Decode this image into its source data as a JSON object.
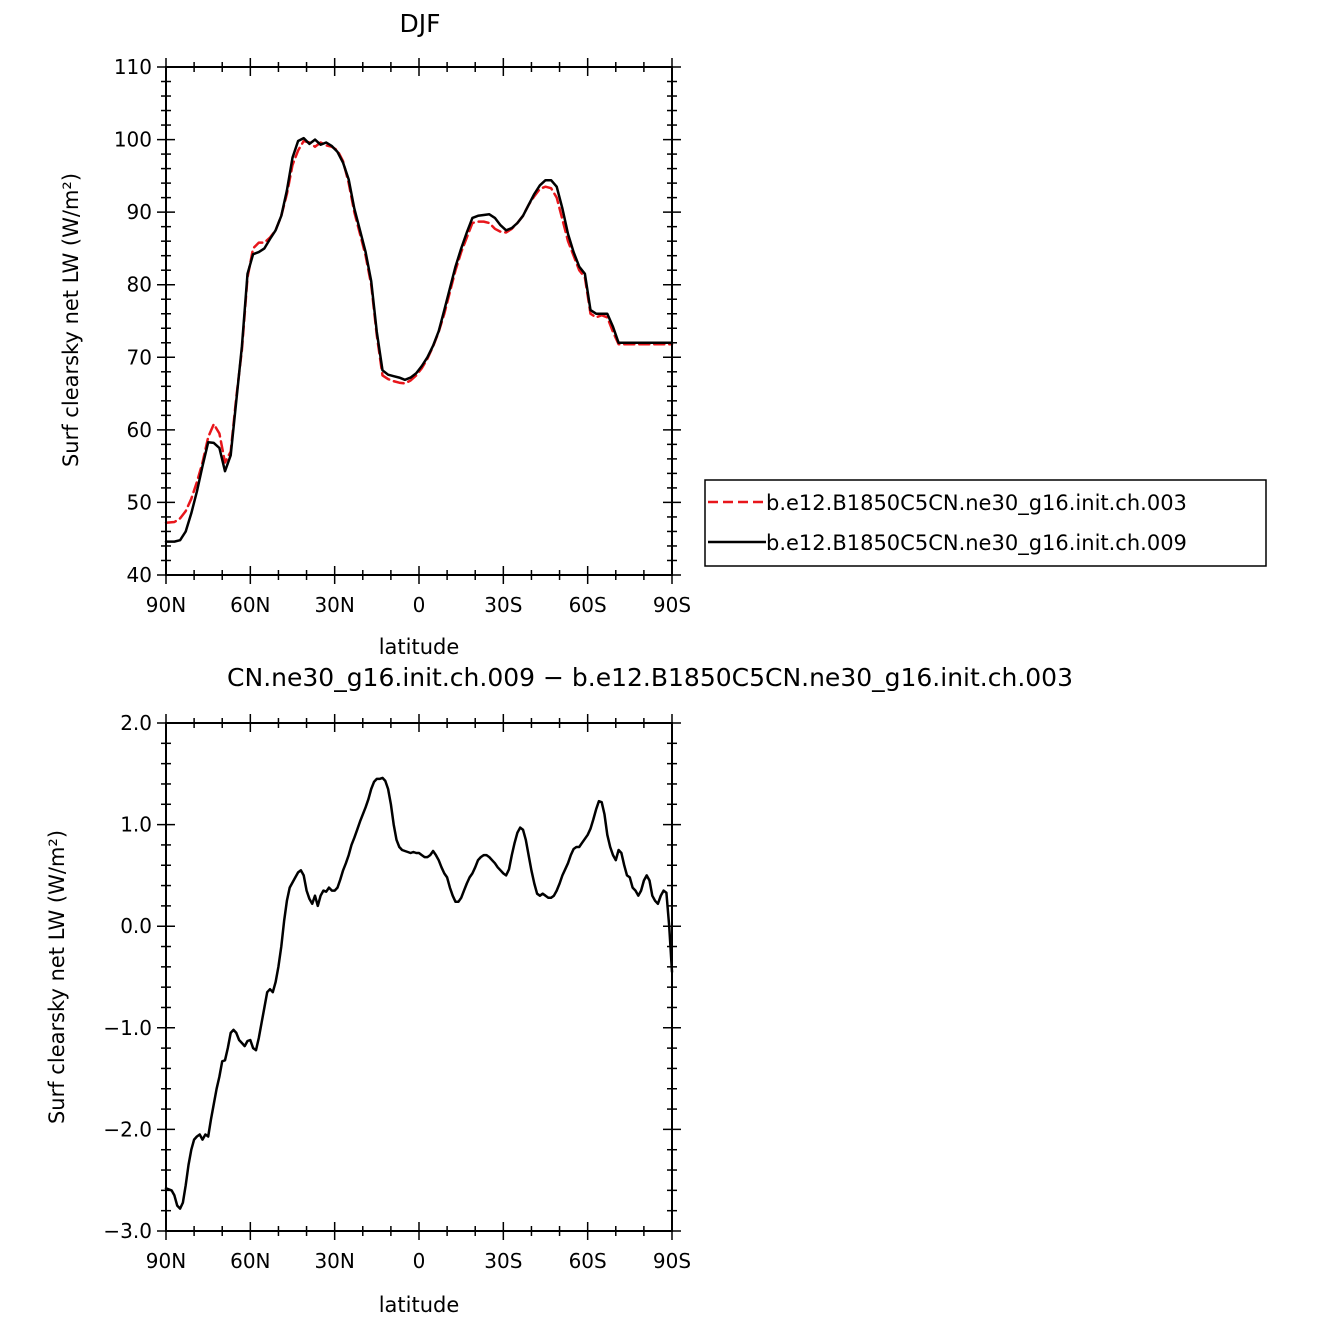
{
  "chart_data": [
    {
      "type": "line",
      "title": "DJF",
      "xlabel": "latitude",
      "ylabel": "Surf clearsky net LW (W/m²)",
      "xlim": [
        90,
        -90
      ],
      "ylim": [
        40,
        110
      ],
      "xticks": [
        {
          "value": 90,
          "label": "90N"
        },
        {
          "value": 60,
          "label": "60N"
        },
        {
          "value": 30,
          "label": "30N"
        },
        {
          "value": 0,
          "label": "0"
        },
        {
          "value": -30,
          "label": "30S"
        },
        {
          "value": -60,
          "label": "60S"
        },
        {
          "value": -90,
          "label": "90S"
        }
      ],
      "yticks": [
        {
          "value": 40,
          "label": "40"
        },
        {
          "value": 50,
          "label": "50"
        },
        {
          "value": 60,
          "label": "60"
        },
        {
          "value": 70,
          "label": "70"
        },
        {
          "value": 80,
          "label": "80"
        },
        {
          "value": 90,
          "label": "90"
        },
        {
          "value": 100,
          "label": "100"
        },
        {
          "value": 110,
          "label": "110"
        }
      ],
      "legend_position": "right",
      "series": [
        {
          "name": "b.e12.B1850C5CN.ne30_g16.init.ch.003",
          "color": "#e8161b",
          "dash": "dashed",
          "x": [
            90,
            87,
            85,
            83,
            81,
            79,
            77,
            75,
            73,
            71,
            69,
            67,
            65,
            63,
            61,
            59,
            57,
            55,
            53,
            51,
            49,
            47,
            45,
            43,
            41,
            39,
            37,
            35,
            33,
            31,
            29,
            27,
            25,
            23,
            21,
            19,
            17,
            15,
            13,
            11,
            9,
            7,
            5,
            3,
            1,
            -1,
            -3,
            -5,
            -7,
            -9,
            -11,
            -13,
            -15,
            -17,
            -19,
            -21,
            -23,
            -25,
            -27,
            -29,
            -31,
            -33,
            -35,
            -37,
            -39,
            -41,
            -43,
            -45,
            -47,
            -49,
            -51,
            -53,
            -55,
            -57,
            -59,
            -61,
            -63,
            -65,
            -67,
            -69,
            -71,
            -73,
            -75,
            -77,
            -79,
            -81,
            -83,
            -85,
            -87,
            -90
          ],
          "values": [
            47.2,
            47.3,
            47.8,
            48.8,
            50.5,
            52.8,
            55.5,
            59.0,
            60.8,
            59.5,
            55.5,
            57.0,
            64.5,
            71.0,
            81.0,
            85.0,
            85.8,
            85.8,
            86.5,
            87.5,
            89.5,
            92.5,
            96.5,
            98.5,
            99.8,
            99.6,
            99.0,
            99.6,
            99.2,
            99.0,
            98.5,
            97.0,
            94.0,
            90.0,
            87.0,
            84.0,
            80.0,
            73.0,
            67.5,
            67.0,
            66.7,
            66.5,
            66.4,
            66.8,
            67.5,
            68.5,
            69.8,
            71.5,
            73.5,
            76.0,
            79.0,
            82.0,
            84.5,
            86.5,
            88.5,
            88.7,
            88.7,
            88.5,
            87.7,
            87.3,
            87.2,
            87.7,
            88.5,
            89.5,
            91.0,
            92.2,
            93.2,
            93.5,
            93.3,
            92.0,
            89.0,
            86.0,
            84.0,
            82.0,
            81.0,
            76.0,
            75.5,
            75.8,
            75.5,
            73.5,
            71.8,
            71.8,
            71.8,
            71.8,
            71.8,
            71.8,
            71.8,
            71.8,
            71.8,
            71.8
          ]
        },
        {
          "name": "b.e12.B1850C5CN.ne30_g16.init.ch.009",
          "color": "#000000",
          "dash": "solid",
          "x": [
            90,
            87,
            85,
            83,
            81,
            79,
            77,
            75,
            73,
            71,
            69,
            67,
            65,
            63,
            61,
            59,
            57,
            55,
            53,
            51,
            49,
            47,
            45,
            43,
            41,
            39,
            37,
            35,
            33,
            31,
            29,
            27,
            25,
            23,
            21,
            19,
            17,
            15,
            13,
            11,
            9,
            7,
            5,
            3,
            1,
            -1,
            -3,
            -5,
            -7,
            -9,
            -11,
            -13,
            -15,
            -17,
            -19,
            -21,
            -23,
            -25,
            -27,
            -29,
            -31,
            -33,
            -35,
            -37,
            -39,
            -41,
            -43,
            -45,
            -47,
            -49,
            -51,
            -53,
            -55,
            -57,
            -59,
            -61,
            -63,
            -65,
            -67,
            -69,
            -71,
            -73,
            -75,
            -77,
            -79,
            -81,
            -83,
            -85,
            -87,
            -90
          ],
          "values": [
            44.6,
            44.6,
            44.8,
            46.0,
            48.5,
            51.5,
            55.0,
            58.3,
            58.2,
            57.5,
            54.3,
            56.5,
            64.0,
            71.5,
            81.5,
            84.2,
            84.5,
            85.0,
            86.3,
            87.5,
            89.5,
            93.0,
            97.5,
            99.8,
            100.2,
            99.4,
            100.0,
            99.3,
            99.6,
            99.1,
            98.3,
            96.8,
            94.5,
            90.5,
            87.5,
            84.5,
            80.5,
            73.5,
            68.2,
            67.6,
            67.4,
            67.2,
            66.9,
            67.2,
            67.8,
            68.8,
            70.0,
            71.6,
            73.6,
            76.5,
            79.5,
            82.5,
            85.0,
            87.2,
            89.2,
            89.5,
            89.6,
            89.7,
            89.2,
            88.2,
            87.5,
            87.8,
            88.5,
            89.5,
            91.0,
            92.5,
            93.7,
            94.4,
            94.4,
            93.5,
            90.5,
            87.0,
            84.5,
            82.5,
            81.5,
            76.5,
            76.0,
            76.0,
            76.0,
            74.2,
            72.0,
            72.0,
            72.0,
            72.0,
            72.0,
            72.0,
            72.0,
            72.0,
            72.0,
            72.0
          ]
        }
      ]
    },
    {
      "type": "line",
      "title": "CN.ne30_g16.init.ch.009 − b.e12.B1850C5CN.ne30_g16.init.ch.003",
      "xlabel": "latitude",
      "ylabel": "Surf clearsky net LW (W/m²)",
      "xlim": [
        90,
        -90
      ],
      "ylim": [
        -3.0,
        2.0
      ],
      "xticks": [
        {
          "value": 90,
          "label": "90N"
        },
        {
          "value": 60,
          "label": "60N"
        },
        {
          "value": 30,
          "label": "30N"
        },
        {
          "value": 0,
          "label": "0"
        },
        {
          "value": -30,
          "label": "30S"
        },
        {
          "value": -60,
          "label": "60S"
        },
        {
          "value": -90,
          "label": "90S"
        }
      ],
      "yticks": [
        {
          "value": -3.0,
          "label": "−3.0"
        },
        {
          "value": -2.0,
          "label": "−2.0"
        },
        {
          "value": -1.0,
          "label": "−1.0"
        },
        {
          "value": 0.0,
          "label": "0.0"
        },
        {
          "value": 1.0,
          "label": "1.0"
        },
        {
          "value": 2.0,
          "label": "2.0"
        }
      ],
      "series": [
        {
          "color": "#000000",
          "dash": "solid",
          "x": [
            90,
            88,
            87,
            86,
            85,
            84,
            83,
            82,
            81,
            80,
            79,
            78,
            77,
            76,
            75,
            74,
            73,
            72,
            71,
            70,
            69,
            68,
            67,
            66,
            65,
            64,
            63,
            62,
            61,
            60,
            59,
            58,
            57,
            56,
            55,
            54,
            53,
            52,
            51,
            50,
            49,
            48,
            47,
            46,
            45,
            44,
            43,
            42,
            41,
            40,
            39,
            38,
            37,
            36,
            35,
            34,
            33,
            32,
            31,
            30,
            29,
            28,
            27,
            26,
            25,
            24,
            23,
            22,
            21,
            20,
            19,
            18,
            17,
            16,
            15,
            14,
            13,
            12,
            11,
            10,
            9,
            8,
            7,
            6,
            5,
            4,
            3,
            2,
            1,
            0,
            -1,
            -2,
            -3,
            -4,
            -5,
            -6,
            -7,
            -8,
            -9,
            -10,
            -11,
            -12,
            -13,
            -14,
            -15,
            -16,
            -17,
            -18,
            -19,
            -20,
            -21,
            -22,
            -23,
            -24,
            -25,
            -26,
            -27,
            -28,
            -29,
            -30,
            -31,
            -32,
            -33,
            -34,
            -35,
            -36,
            -37,
            -38,
            -39,
            -40,
            -41,
            -42,
            -43,
            -44,
            -45,
            -46,
            -47,
            -48,
            -49,
            -50,
            -51,
            -52,
            -53,
            -54,
            -55,
            -56,
            -57,
            -58,
            -59,
            -60,
            -61,
            -62,
            -63,
            -64,
            -65,
            -66,
            -67,
            -68,
            -69,
            -70,
            -71,
            -72,
            -73,
            -74,
            -75,
            -76,
            -77,
            -78,
            -79,
            -80,
            -81,
            -82,
            -83,
            -84,
            -85,
            -86,
            -87,
            -88,
            -89,
            -90
          ],
          "values": [
            -2.58,
            -2.6,
            -2.65,
            -2.75,
            -2.78,
            -2.72,
            -2.55,
            -2.35,
            -2.2,
            -2.1,
            -2.07,
            -2.05,
            -2.1,
            -2.05,
            -2.07,
            -1.9,
            -1.75,
            -1.6,
            -1.48,
            -1.33,
            -1.32,
            -1.2,
            -1.05,
            -1.02,
            -1.05,
            -1.12,
            -1.15,
            -1.18,
            -1.13,
            -1.12,
            -1.2,
            -1.22,
            -1.1,
            -0.95,
            -0.8,
            -0.65,
            -0.62,
            -0.65,
            -0.55,
            -0.4,
            -0.2,
            0.05,
            0.25,
            0.38,
            0.43,
            0.48,
            0.53,
            0.55,
            0.5,
            0.35,
            0.27,
            0.22,
            0.3,
            0.2,
            0.3,
            0.35,
            0.34,
            0.38,
            0.35,
            0.35,
            0.38,
            0.46,
            0.55,
            0.62,
            0.7,
            0.8,
            0.87,
            0.95,
            1.03,
            1.1,
            1.17,
            1.25,
            1.35,
            1.42,
            1.45,
            1.45,
            1.46,
            1.43,
            1.35,
            1.2,
            1.0,
            0.85,
            0.78,
            0.75,
            0.74,
            0.73,
            0.72,
            0.73,
            0.72,
            0.72,
            0.7,
            0.68,
            0.68,
            0.7,
            0.74,
            0.7,
            0.65,
            0.58,
            0.52,
            0.48,
            0.38,
            0.3,
            0.24,
            0.24,
            0.28,
            0.35,
            0.42,
            0.48,
            0.52,
            0.58,
            0.65,
            0.68,
            0.7,
            0.7,
            0.68,
            0.65,
            0.62,
            0.58,
            0.55,
            0.52,
            0.5,
            0.56,
            0.7,
            0.82,
            0.92,
            0.97,
            0.95,
            0.85,
            0.7,
            0.55,
            0.42,
            0.32,
            0.3,
            0.32,
            0.3,
            0.28,
            0.28,
            0.3,
            0.35,
            0.42,
            0.5,
            0.56,
            0.62,
            0.7,
            0.76,
            0.78,
            0.78,
            0.82,
            0.86,
            0.9,
            0.96,
            1.05,
            1.15,
            1.23,
            1.22,
            1.1,
            0.9,
            0.78,
            0.7,
            0.65,
            0.75,
            0.72,
            0.6,
            0.5,
            0.48,
            0.38,
            0.35,
            0.3,
            0.35,
            0.45,
            0.5,
            0.45,
            0.3,
            0.25,
            0.22,
            0.3,
            0.35,
            0.33,
            0.0,
            -0.45
          ]
        }
      ]
    }
  ]
}
